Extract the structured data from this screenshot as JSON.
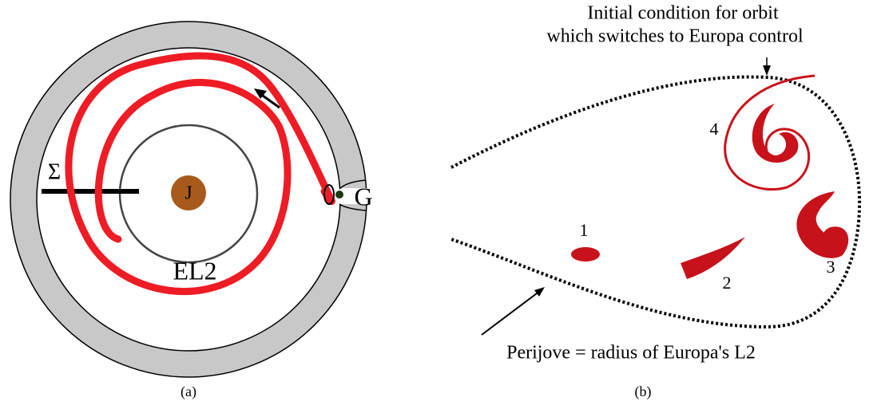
{
  "panel_a": {
    "sigma": "Σ",
    "jupiter": "J",
    "gap": "G",
    "inner_circle": "EL2",
    "caption": "(a)"
  },
  "panel_b": {
    "annotation_top": [
      "Initial condition for orbit",
      "which switches to Europa control"
    ],
    "regions": [
      "1",
      "2",
      "3",
      "4"
    ],
    "annotation_bottom": "Perijove = radius of Europa's L2",
    "caption": "(b)"
  }
}
